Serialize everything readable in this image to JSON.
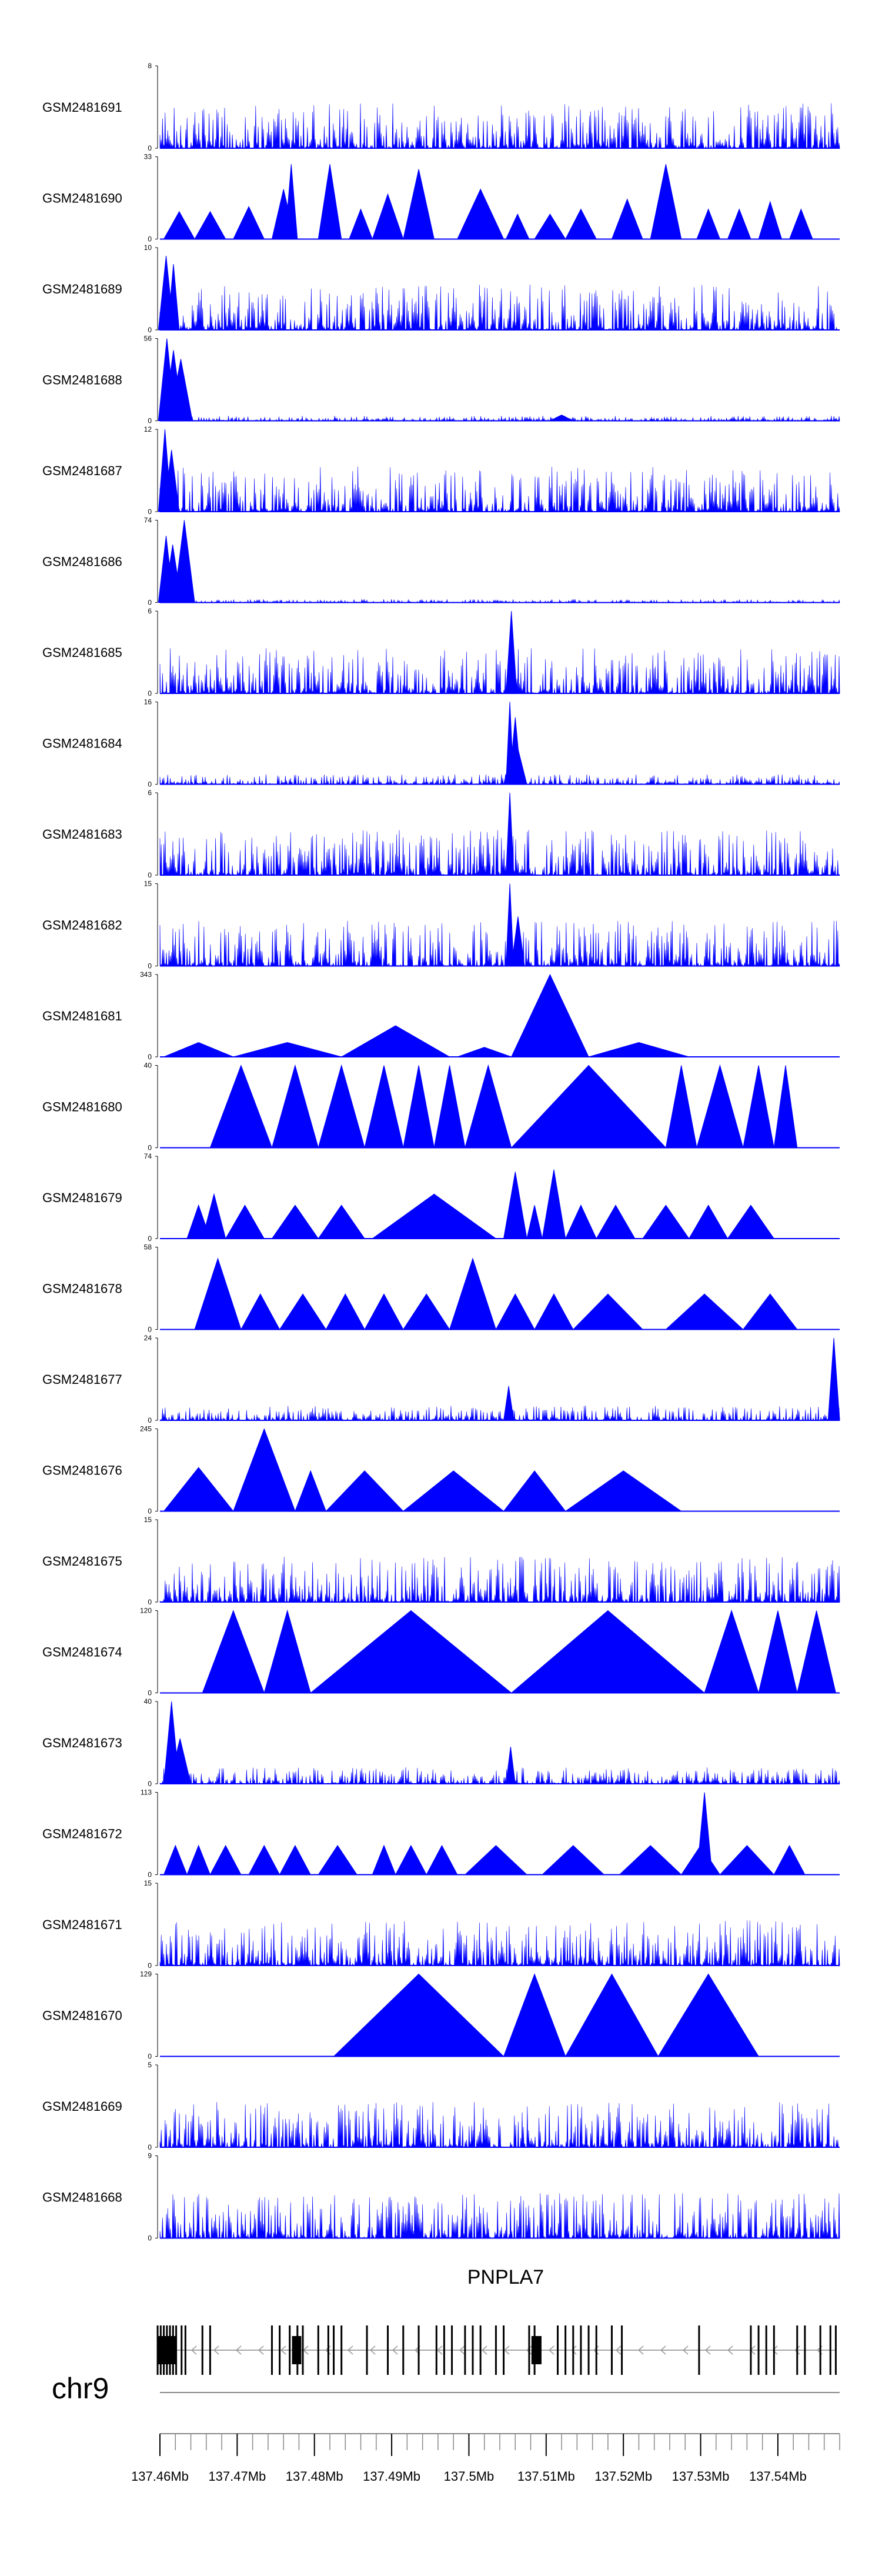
{
  "colors": {
    "signal": "#0000ff",
    "axis": "#000000",
    "gene": "#000000",
    "baseline": "#888888"
  },
  "chart_data": {
    "type": "area",
    "genome": {
      "chromosome": "chr9",
      "gene_name": "PNPLA7",
      "strand": "-",
      "xlim": [
        137.46,
        137.548
      ]
    },
    "x_ticks": [
      "137.46Mb",
      "137.47Mb",
      "137.48Mb",
      "137.49Mb",
      "137.5Mb",
      "137.51Mb",
      "137.52Mb",
      "137.53Mb",
      "137.54Mb"
    ],
    "tracks": [
      {
        "name": "GSM2481691",
        "ymax": "8",
        "max": 8,
        "style": "dense",
        "peaks": []
      },
      {
        "name": "GSM2481690",
        "ymax": "33",
        "max": 33,
        "style": "sparse",
        "peaks": [
          [
            137.4605,
            137.4645,
            11
          ],
          [
            137.4645,
            137.4685,
            11
          ],
          [
            137.4695,
            137.4735,
            13
          ],
          [
            137.4745,
            137.4775,
            20
          ],
          [
            137.4762,
            137.4778,
            30
          ],
          [
            137.4805,
            137.4835,
            30
          ],
          [
            137.4845,
            137.4875,
            12
          ],
          [
            137.4875,
            137.4915,
            18
          ],
          [
            137.4915,
            137.4955,
            28
          ],
          [
            137.4985,
            137.5045,
            20
          ],
          [
            137.5048,
            137.5078,
            10
          ],
          [
            137.5085,
            137.5125,
            10
          ],
          [
            137.5125,
            137.5165,
            12
          ],
          [
            137.5185,
            137.5225,
            16
          ],
          [
            137.5235,
            137.5275,
            30
          ],
          [
            137.5295,
            137.5325,
            12
          ],
          [
            137.5335,
            137.5365,
            12
          ],
          [
            137.5375,
            137.5405,
            15
          ],
          [
            137.5415,
            137.5445,
            12
          ]
        ]
      },
      {
        "name": "GSM2481689",
        "ymax": "10",
        "max": 10,
        "style": "dense",
        "peaks": [
          [
            137.4598,
            137.4618,
            9
          ],
          [
            137.461,
            137.4625,
            8
          ]
        ]
      },
      {
        "name": "GSM2481688",
        "ymax": "56",
        "max": 56,
        "style": "dense",
        "scale": 0.06,
        "peaks": [
          [
            137.4598,
            137.462,
            56
          ],
          [
            137.4605,
            137.463,
            48
          ],
          [
            137.4612,
            137.4642,
            42
          ],
          [
            137.5105,
            137.5135,
            4
          ]
        ]
      },
      {
        "name": "GSM2481687",
        "ymax": "12",
        "max": 12,
        "style": "dense",
        "peaks": [
          [
            137.4598,
            137.4615,
            12
          ],
          [
            137.4605,
            137.4625,
            9
          ]
        ]
      },
      {
        "name": "GSM2481686",
        "ymax": "74",
        "max": 74,
        "style": "dense",
        "scale": 0.04,
        "peaks": [
          [
            137.4598,
            137.4618,
            60
          ],
          [
            137.4605,
            137.4628,
            52
          ],
          [
            137.4618,
            137.4645,
            74
          ]
        ]
      },
      {
        "name": "GSM2481685",
        "ymax": "6",
        "max": 6,
        "style": "dense",
        "peaks": [
          [
            137.5048,
            137.5062,
            6
          ]
        ]
      },
      {
        "name": "GSM2481684",
        "ymax": "16",
        "max": 16,
        "style": "dense",
        "scale": 0.12,
        "peaks": [
          [
            137.5048,
            137.5058,
            16
          ],
          [
            137.5052,
            137.5068,
            13
          ],
          [
            137.5045,
            137.5075,
            9
          ]
        ]
      },
      {
        "name": "GSM2481683",
        "ymax": "6",
        "max": 6,
        "style": "dense",
        "peaks": [
          [
            137.5048,
            137.5058,
            6
          ]
        ]
      },
      {
        "name": "GSM2481682",
        "ymax": "15",
        "max": 15,
        "style": "dense",
        "peaks": [
          [
            137.5048,
            137.5058,
            15
          ],
          [
            137.5055,
            137.5072,
            9
          ]
        ]
      },
      {
        "name": "GSM2481681",
        "ymax": "343",
        "max": 343,
        "style": "sparse",
        "peaks": [
          [
            137.4605,
            137.4695,
            60
          ],
          [
            137.4695,
            137.4835,
            60
          ],
          [
            137.4835,
            137.4975,
            130
          ],
          [
            137.4985,
            137.5055,
            40
          ],
          [
            137.5055,
            137.5155,
            343
          ],
          [
            137.5155,
            137.5285,
            60
          ]
        ]
      },
      {
        "name": "GSM2481680",
        "ymax": "40",
        "max": 40,
        "style": "sparse",
        "peaks": [
          [
            137.4665,
            137.4745,
            40
          ],
          [
            137.4745,
            137.4805,
            40
          ],
          [
            137.4805,
            137.4865,
            40
          ],
          [
            137.4865,
            137.4915,
            40
          ],
          [
            137.4915,
            137.4955,
            40
          ],
          [
            137.4955,
            137.4995,
            40
          ],
          [
            137.4995,
            137.5055,
            40
          ],
          [
            137.5055,
            137.5255,
            40
          ],
          [
            137.5255,
            137.5295,
            40
          ],
          [
            137.5295,
            137.5355,
            40
          ],
          [
            137.5355,
            137.5395,
            40
          ],
          [
            137.5395,
            137.5425,
            40
          ]
        ]
      },
      {
        "name": "GSM2481679",
        "ymax": "74",
        "max": 74,
        "style": "sparse",
        "peaks": [
          [
            137.4635,
            137.4665,
            30
          ],
          [
            137.4655,
            137.4685,
            40
          ],
          [
            137.4685,
            137.4735,
            30
          ],
          [
            137.4745,
            137.4805,
            30
          ],
          [
            137.4805,
            137.4865,
            30
          ],
          [
            137.4875,
            137.5035,
            40
          ],
          [
            137.5045,
            137.5075,
            60
          ],
          [
            137.5075,
            137.5095,
            30
          ],
          [
            137.5095,
            137.5125,
            62
          ],
          [
            137.5125,
            137.5165,
            30
          ],
          [
            137.5165,
            137.5215,
            30
          ],
          [
            137.5225,
            137.5285,
            30
          ],
          [
            137.5285,
            137.5335,
            30
          ],
          [
            137.5335,
            137.5395,
            30
          ]
        ]
      },
      {
        "name": "GSM2481678",
        "ymax": "58",
        "max": 58,
        "style": "sparse",
        "peaks": [
          [
            137.4645,
            137.4705,
            50
          ],
          [
            137.4705,
            137.4755,
            25
          ],
          [
            137.4755,
            137.4815,
            25
          ],
          [
            137.4815,
            137.4865,
            25
          ],
          [
            137.4865,
            137.4915,
            25
          ],
          [
            137.4915,
            137.4975,
            25
          ],
          [
            137.4975,
            137.5035,
            50
          ],
          [
            137.5035,
            137.5085,
            25
          ],
          [
            137.5085,
            137.5135,
            25
          ],
          [
            137.5135,
            137.5225,
            25
          ],
          [
            137.5255,
            137.5355,
            25
          ],
          [
            137.5355,
            137.5425,
            25
          ]
        ]
      },
      {
        "name": "GSM2481677",
        "ymax": "24",
        "max": 24,
        "style": "dense",
        "scale": 0.18,
        "peaks": [
          [
            137.5465,
            137.548,
            24
          ],
          [
            137.5045,
            137.5058,
            10
          ]
        ]
      },
      {
        "name": "GSM2481676",
        "ymax": "245",
        "max": 245,
        "style": "sparse",
        "peaks": [
          [
            137.4605,
            137.4695,
            130
          ],
          [
            137.4695,
            137.4775,
            245
          ],
          [
            137.4775,
            137.4815,
            120
          ],
          [
            137.4815,
            137.4915,
            120
          ],
          [
            137.4915,
            137.5045,
            120
          ],
          [
            137.5045,
            137.5125,
            120
          ],
          [
            137.5125,
            137.5275,
            120
          ]
        ]
      },
      {
        "name": "GSM2481675",
        "ymax": "15",
        "max": 15,
        "style": "dense",
        "peaks": []
      },
      {
        "name": "GSM2481674",
        "ymax": "120",
        "max": 120,
        "style": "sparse",
        "peaks": [
          [
            137.4655,
            137.4735,
            120
          ],
          [
            137.4735,
            137.4795,
            120
          ],
          [
            137.4795,
            137.5055,
            120
          ],
          [
            137.5055,
            137.5305,
            120
          ],
          [
            137.5305,
            137.5375,
            120
          ],
          [
            137.5375,
            137.5425,
            120
          ],
          [
            137.5425,
            137.5475,
            120
          ]
        ]
      },
      {
        "name": "GSM2481673",
        "ymax": "40",
        "max": 40,
        "style": "dense",
        "scale": 0.2,
        "peaks": [
          [
            137.4605,
            137.4625,
            40
          ],
          [
            137.4612,
            137.464,
            22
          ],
          [
            137.5048,
            137.506,
            18
          ]
        ]
      },
      {
        "name": "GSM2481672",
        "ymax": "113",
        "max": 113,
        "style": "sparse",
        "peaks": [
          [
            137.4605,
            137.4635,
            40
          ],
          [
            137.4635,
            137.4665,
            40
          ],
          [
            137.4665,
            137.4705,
            40
          ],
          [
            137.4715,
            137.4755,
            40
          ],
          [
            137.4755,
            137.4795,
            40
          ],
          [
            137.4805,
            137.4855,
            40
          ],
          [
            137.4875,
            137.4905,
            40
          ],
          [
            137.4905,
            137.4945,
            40
          ],
          [
            137.4945,
            137.4985,
            40
          ],
          [
            137.4995,
            137.5075,
            40
          ],
          [
            137.5095,
            137.5175,
            40
          ],
          [
            137.5195,
            137.5275,
            40
          ],
          [
            137.5275,
            137.5325,
            40
          ],
          [
            137.5325,
            137.5395,
            40
          ],
          [
            137.5395,
            137.5435,
            40
          ],
          [
            137.5295,
            137.5315,
            113
          ]
        ]
      },
      {
        "name": "GSM2481671",
        "ymax": "15",
        "max": 15,
        "style": "dense",
        "peaks": []
      },
      {
        "name": "GSM2481670",
        "ymax": "129",
        "max": 129,
        "style": "sparse",
        "peaks": [
          [
            137.4825,
            137.5045,
            129
          ],
          [
            137.5045,
            137.5125,
            129
          ],
          [
            137.5125,
            137.5245,
            129
          ],
          [
            137.5245,
            137.5375,
            129
          ]
        ]
      },
      {
        "name": "GSM2481669",
        "ymax": "5",
        "max": 5,
        "style": "dense",
        "peaks": []
      },
      {
        "name": "GSM2481668",
        "ymax": "9",
        "max": 9,
        "style": "dense",
        "peaks": []
      }
    ],
    "exons": [
      137.4597,
      137.4601,
      137.4605,
      137.4609,
      137.4613,
      137.4617,
      137.4621,
      137.4628,
      137.4633,
      137.4655,
      137.4665,
      137.4745,
      137.4755,
      137.4768,
      137.4778,
      137.4785,
      137.4805,
      137.4818,
      137.4825,
      137.4835,
      137.4868,
      137.4895,
      137.4915,
      137.4935,
      137.4958,
      137.4968,
      137.4978,
      137.4995,
      137.5005,
      137.5015,
      137.5035,
      137.5045,
      137.5078,
      137.5085,
      137.5115,
      137.5125,
      137.5135,
      137.5145,
      137.5155,
      137.5165,
      137.5185,
      137.5198,
      137.5298,
      137.5365,
      137.5375,
      137.5385,
      137.5395,
      137.5425,
      137.5435,
      137.5455,
      137.5468,
      137.5475
    ],
    "thick_exons": [
      [
        137.4597,
        137.4622
      ],
      [
        137.4771,
        137.4783
      ],
      [
        137.5081,
        137.5094
      ]
    ]
  }
}
